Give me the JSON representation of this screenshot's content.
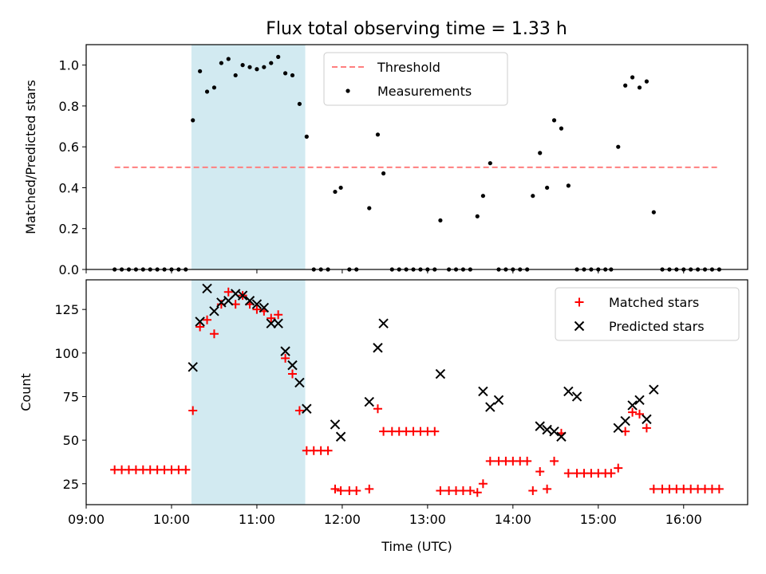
{
  "chart_data": [
    {
      "type": "scatter",
      "title": "Flux total observing time = 1.33 h",
      "xlabel": "",
      "ylabel": "Matched/Predicted stars",
      "xlim": [
        "09:00",
        "16:45"
      ],
      "ylim": [
        0,
        1.1
      ],
      "yticks": [
        "0.0",
        "0.2",
        "0.4",
        "0.6",
        "0.8",
        "1.0"
      ],
      "shaded_interval": [
        "10:14",
        "11:34"
      ],
      "shade_color": "#add8e6",
      "legend_position": "top-center",
      "series": [
        {
          "name": "Threshold",
          "style": "dashed-line",
          "color": "#ff7f7f",
          "x": [
            "09:20",
            "16:25"
          ],
          "y": [
            0.5,
            0.5
          ]
        },
        {
          "name": "Measurements",
          "style": "dot",
          "color": "#000000",
          "x": [
            "09:20",
            "09:25",
            "09:30",
            "09:35",
            "09:40",
            "09:45",
            "09:50",
            "09:55",
            "10:00",
            "10:05",
            "10:10",
            "10:15",
            "10:20",
            "10:25",
            "10:30",
            "10:35",
            "10:40",
            "10:45",
            "10:50",
            "10:55",
            "11:00",
            "11:05",
            "11:10",
            "11:15",
            "11:20",
            "11:25",
            "11:30",
            "11:35",
            "11:40",
            "11:45",
            "11:50",
            "11:55",
            "11:59",
            "12:05",
            "12:10",
            "12:19",
            "12:25",
            "12:29",
            "12:35",
            "12:40",
            "12:45",
            "12:50",
            "12:55",
            "13:00",
            "13:05",
            "13:09",
            "13:15",
            "13:20",
            "13:25",
            "13:30",
            "13:35",
            "13:39",
            "13:44",
            "13:50",
            "13:55",
            "14:00",
            "14:05",
            "14:10",
            "14:14",
            "14:19",
            "14:24",
            "14:29",
            "14:34",
            "14:39",
            "14:45",
            "14:50",
            "14:55",
            "15:00",
            "15:05",
            "15:09",
            "15:14",
            "15:19",
            "15:24",
            "15:29",
            "15:34",
            "15:39",
            "15:45",
            "15:50",
            "15:55",
            "16:00",
            "16:05",
            "16:10",
            "16:15",
            "16:20",
            "16:25"
          ],
          "y": [
            0,
            0,
            0,
            0,
            0,
            0,
            0,
            0,
            0,
            0,
            0,
            0.73,
            0.97,
            0.87,
            0.89,
            1.01,
            1.03,
            0.95,
            1.0,
            0.99,
            0.98,
            0.99,
            1.01,
            1.04,
            0.96,
            0.95,
            0.81,
            0.65,
            0,
            0,
            0,
            0.38,
            0.4,
            0,
            0,
            0.3,
            0.66,
            0.47,
            0,
            0,
            0,
            0,
            0,
            0,
            0,
            0.24,
            0,
            0,
            0,
            0,
            0.26,
            0.36,
            0.52,
            0,
            0,
            0,
            0,
            0,
            0.36,
            0.57,
            0.4,
            0.73,
            0.69,
            0.41,
            0,
            0,
            0,
            0,
            0,
            0,
            0.6,
            0.9,
            0.94,
            0.89,
            0.92,
            0.28,
            0,
            0,
            0,
            0,
            0,
            0,
            0,
            0,
            0
          ]
        }
      ]
    },
    {
      "type": "scatter",
      "title": "",
      "xlabel": "Time (UTC)",
      "ylabel": "Count",
      "xlim": [
        "09:00",
        "16:45"
      ],
      "xticks": [
        "09:00",
        "10:00",
        "11:00",
        "12:00",
        "13:00",
        "14:00",
        "15:00",
        "16:00"
      ],
      "ylim": [
        13,
        142
      ],
      "yticks": [
        "25",
        "50",
        "75",
        "100",
        "125"
      ],
      "shaded_interval": [
        "10:14",
        "11:34"
      ],
      "shade_color": "#add8e6",
      "legend_position": "top-right",
      "series": [
        {
          "name": "Matched stars",
          "style": "plus",
          "color": "#ff0000",
          "x": [
            "09:20",
            "09:25",
            "09:30",
            "09:35",
            "09:40",
            "09:45",
            "09:50",
            "09:55",
            "10:00",
            "10:05",
            "10:10",
            "10:15",
            "10:20",
            "10:25",
            "10:30",
            "10:35",
            "10:40",
            "10:45",
            "10:50",
            "10:55",
            "11:00",
            "11:05",
            "11:10",
            "11:15",
            "11:20",
            "11:25",
            "11:30",
            "11:35",
            "11:40",
            "11:45",
            "11:50",
            "11:55",
            "11:59",
            "12:05",
            "12:10",
            "12:19",
            "12:25",
            "12:29",
            "12:35",
            "12:40",
            "12:45",
            "12:50",
            "12:55",
            "13:00",
            "13:05",
            "13:09",
            "13:15",
            "13:20",
            "13:25",
            "13:30",
            "13:35",
            "13:39",
            "13:44",
            "13:50",
            "13:55",
            "14:00",
            "14:05",
            "14:10",
            "14:14",
            "14:19",
            "14:24",
            "14:29",
            "14:34",
            "14:39",
            "14:45",
            "14:50",
            "14:55",
            "15:00",
            "15:05",
            "15:09",
            "15:14",
            "15:19",
            "15:24",
            "15:29",
            "15:34",
            "15:39",
            "15:45",
            "15:50",
            "15:55",
            "16:00",
            "16:05",
            "16:10",
            "16:15",
            "16:20",
            "16:25"
          ],
          "y": [
            33,
            33,
            33,
            33,
            33,
            33,
            33,
            33,
            33,
            33,
            33,
            67,
            115,
            119,
            111,
            128,
            135,
            128,
            133,
            128,
            125,
            124,
            120,
            122,
            97,
            88,
            67,
            44,
            44,
            44,
            44,
            22,
            21,
            21,
            21,
            22,
            68,
            55,
            55,
            55,
            55,
            55,
            55,
            55,
            55,
            21,
            21,
            21,
            21,
            21,
            20,
            25,
            38,
            38,
            38,
            38,
            38,
            38,
            21,
            32,
            22,
            38,
            54,
            31,
            31,
            31,
            31,
            31,
            31,
            31,
            34,
            55,
            66,
            65,
            57,
            22,
            22,
            22,
            22,
            22,
            22,
            22,
            22,
            22,
            22
          ]
        },
        {
          "name": "Predicted stars",
          "style": "x",
          "color": "#000000",
          "x": [
            "10:15",
            "10:20",
            "10:25",
            "10:30",
            "10:35",
            "10:40",
            "10:45",
            "10:50",
            "10:55",
            "11:00",
            "11:05",
            "11:10",
            "11:15",
            "11:20",
            "11:25",
            "11:30",
            "11:35",
            "11:55",
            "11:59",
            "12:19",
            "12:25",
            "12:29",
            "13:09",
            "13:39",
            "13:44",
            "13:50",
            "14:19",
            "14:24",
            "14:29",
            "14:34",
            "14:39",
            "14:45",
            "15:14",
            "15:19",
            "15:24",
            "15:29",
            "15:34",
            "15:39"
          ],
          "y": [
            92,
            118,
            137,
            124,
            129,
            130,
            134,
            133,
            130,
            128,
            126,
            117,
            117,
            101,
            93,
            83,
            68,
            59,
            52,
            72,
            103,
            117,
            88,
            78,
            69,
            73,
            58,
            56,
            55,
            52,
            78,
            75,
            57,
            61,
            70,
            73,
            62,
            79
          ]
        }
      ]
    }
  ]
}
